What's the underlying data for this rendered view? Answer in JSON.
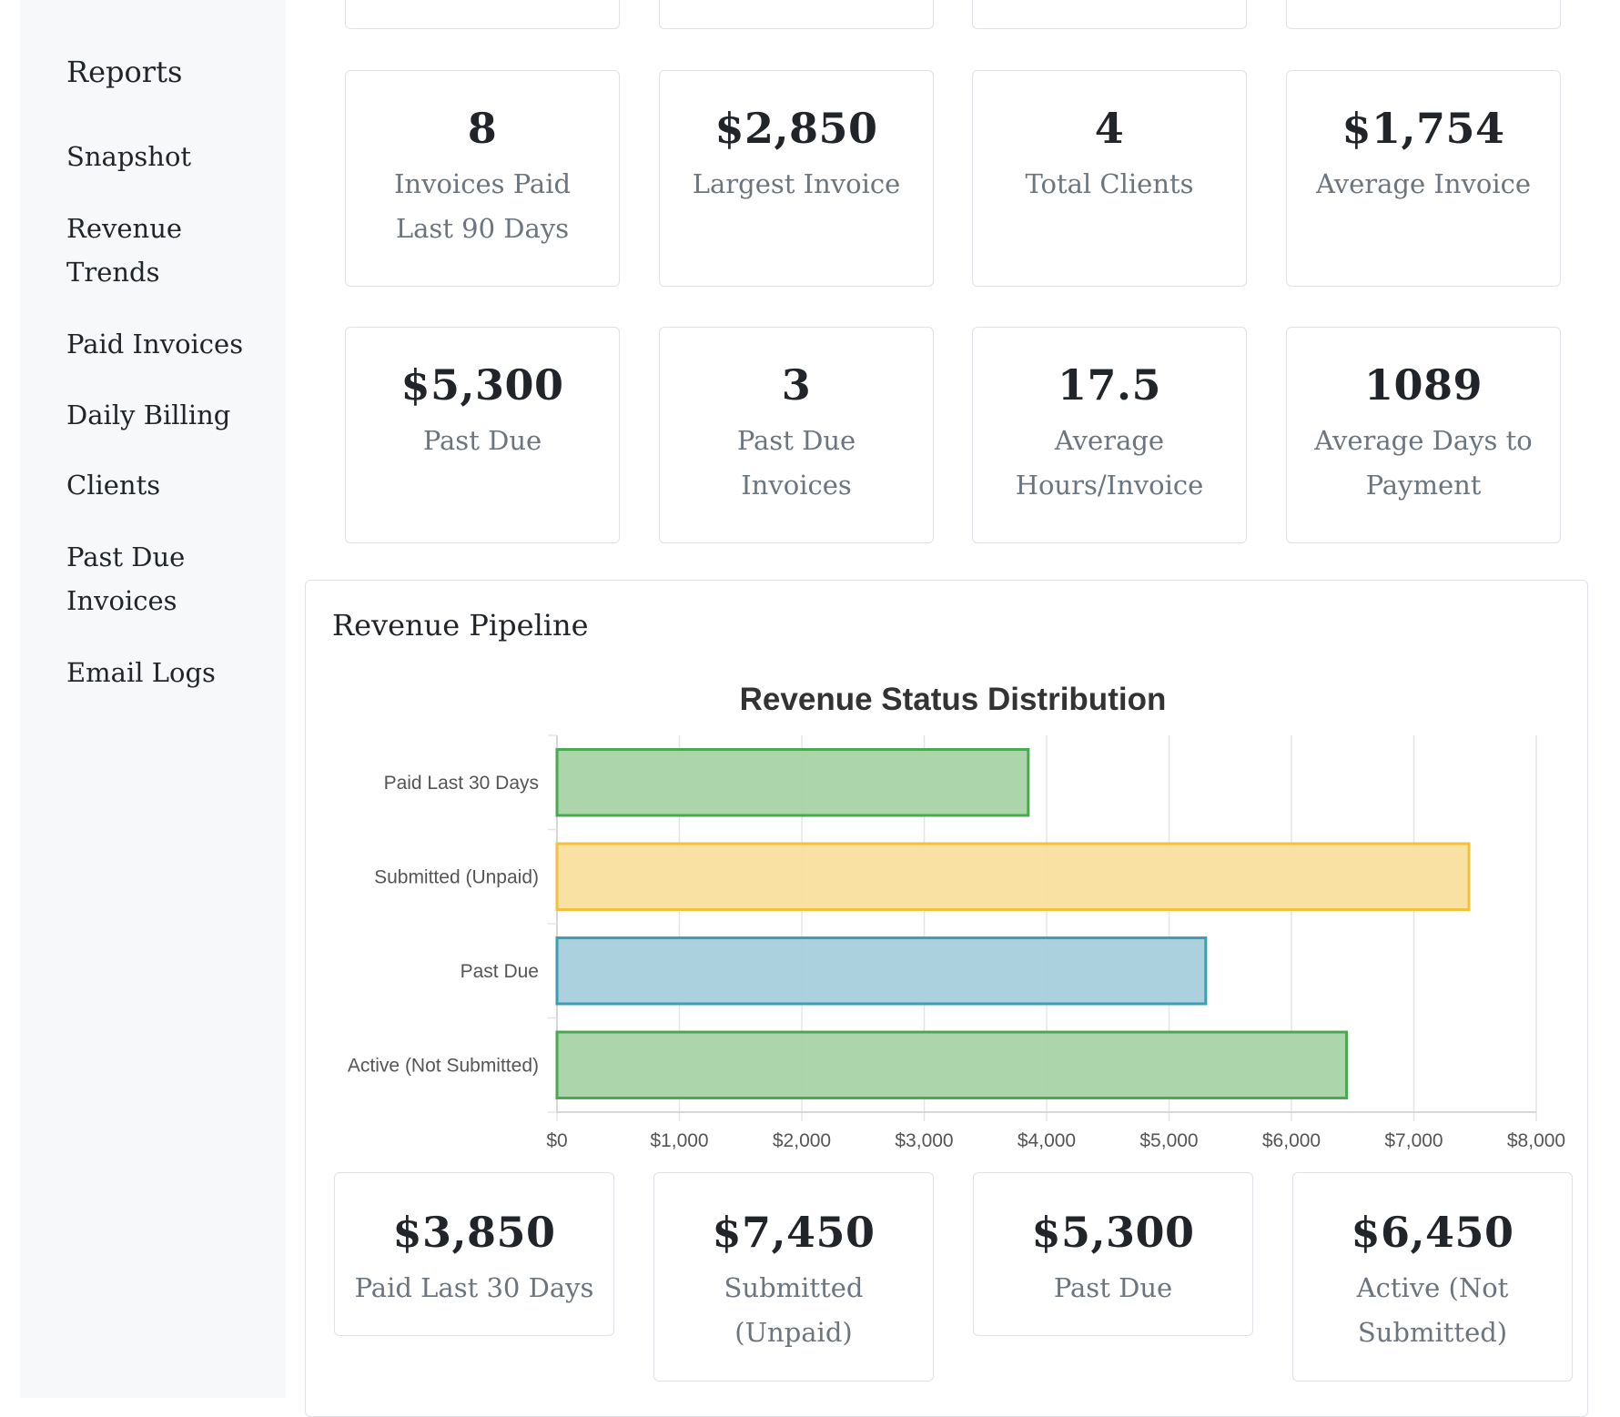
{
  "sidebar": {
    "title": "Reports",
    "items": [
      {
        "label": "Snapshot"
      },
      {
        "label": "Revenue Trends"
      },
      {
        "label": "Paid Invoices"
      },
      {
        "label": "Daily Billing"
      },
      {
        "label": "Clients"
      },
      {
        "label": "Past Due Invoices"
      },
      {
        "label": "Email Logs"
      }
    ]
  },
  "stats_row1": [
    {
      "value": "8",
      "label": "Invoices Paid Last 90 Days"
    },
    {
      "value": "$2,850",
      "label": "Largest Invoice"
    },
    {
      "value": "4",
      "label": "Total Clients"
    },
    {
      "value": "$1,754",
      "label": "Average Invoice"
    }
  ],
  "stats_row2": [
    {
      "value": "$5,300",
      "label": "Past Due"
    },
    {
      "value": "3",
      "label": "Past Due Invoices"
    },
    {
      "value": "17.5",
      "label": "Average Hours/Invoice"
    },
    {
      "value": "1089",
      "label": "Average Days to Payment"
    }
  ],
  "pipeline": {
    "title": "Revenue Pipeline",
    "cards": [
      {
        "value": "$3,850",
        "label": "Paid Last 30 Days"
      },
      {
        "value": "$7,450",
        "label": "Submitted (Unpaid)"
      },
      {
        "value": "$5,300",
        "label": "Past Due"
      },
      {
        "value": "$6,450",
        "label": "Active (Not Submitted)"
      }
    ]
  },
  "colors": {
    "green_fill": "#a9d3a8",
    "green_stroke": "#4aa852",
    "yellow_fill": "#f8df9d",
    "yellow_stroke": "#f2c03d",
    "blue_fill": "#a7cfdc",
    "blue_stroke": "#3a9fb1"
  },
  "chart_data": {
    "type": "bar",
    "orientation": "horizontal",
    "title": "Revenue Status Distribution",
    "categories": [
      "Paid Last 30 Days",
      "Submitted (Unpaid)",
      "Past Due",
      "Active (Not Submitted)"
    ],
    "values": [
      3850,
      7450,
      5300,
      6450
    ],
    "xlim": [
      0,
      8000
    ],
    "xticks": [
      0,
      1000,
      2000,
      3000,
      4000,
      5000,
      6000,
      7000,
      8000
    ],
    "xtick_labels": [
      "$0",
      "$1,000",
      "$2,000",
      "$3,000",
      "$4,000",
      "$5,000",
      "$6,000",
      "$7,000",
      "$8,000"
    ],
    "grid": true,
    "legend": "none"
  }
}
